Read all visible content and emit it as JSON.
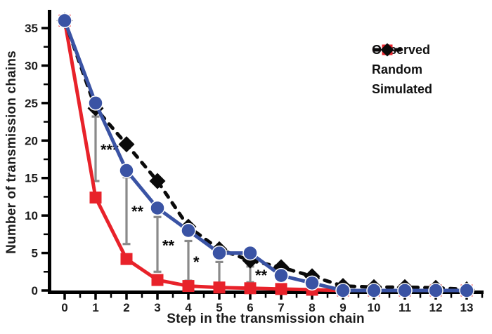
{
  "chart_data": {
    "type": "line",
    "title": "",
    "xlabel": "Step in the transmission chain",
    "ylabel": "Number of transmission chains",
    "x": [
      0,
      1,
      2,
      3,
      4,
      5,
      6,
      7,
      8,
      9,
      10,
      11,
      12,
      13
    ],
    "xticks": [
      0,
      1,
      2,
      3,
      4,
      5,
      6,
      7,
      8,
      9,
      10,
      11,
      12,
      13
    ],
    "yticks": [
      0,
      5,
      10,
      15,
      20,
      25,
      30,
      35
    ],
    "y_minor_step": 2.5,
    "x_minor_step": 0.5,
    "ylim": [
      0,
      37.5
    ],
    "grid": "off",
    "legend_position": "top-right",
    "series": [
      {
        "name": "Observed",
        "color": "#3a53a4",
        "marker": "circle",
        "line": "solid",
        "values": [
          36,
          25,
          16,
          11,
          8,
          5,
          5,
          2,
          1,
          0,
          0,
          0,
          0,
          0
        ]
      },
      {
        "name": "Random",
        "color": "#e8222a",
        "marker": "square",
        "line": "solid",
        "values": [
          36,
          12.4,
          4.2,
          1.4,
          0.6,
          0.4,
          0.3,
          0.2,
          0.1,
          0,
          0,
          0,
          0,
          0
        ]
      },
      {
        "name": "Simulated",
        "color": "#0a0a0a",
        "marker": "diamond",
        "line": "dashed",
        "values": [
          36,
          24.3,
          19.5,
          14.6,
          8.5,
          5.5,
          4.0,
          3.1,
          1.9,
          0.6,
          0.45,
          0.45,
          0.35,
          0.15
        ]
      }
    ],
    "significance": [
      {
        "step": 1,
        "top": 23.2,
        "bottom": 14.6,
        "label": "***"
      },
      {
        "step": 2,
        "top": 15.1,
        "bottom": 6.2,
        "label": "**"
      },
      {
        "step": 3,
        "top": 9.8,
        "bottom": 2.5,
        "label": "**"
      },
      {
        "step": 4,
        "top": 6.6,
        "bottom": 1.3,
        "label": "*"
      },
      {
        "step": 5,
        "top": 3.8,
        "bottom": 1.0,
        "label": ""
      },
      {
        "step": 6,
        "top": 3.2,
        "bottom": 1.1,
        "label": "**"
      }
    ],
    "colors": {
      "error_bar": "#8a8a8a",
      "axis": "#000000",
      "text": "#1c1c1c",
      "background": "#ffffff"
    }
  }
}
